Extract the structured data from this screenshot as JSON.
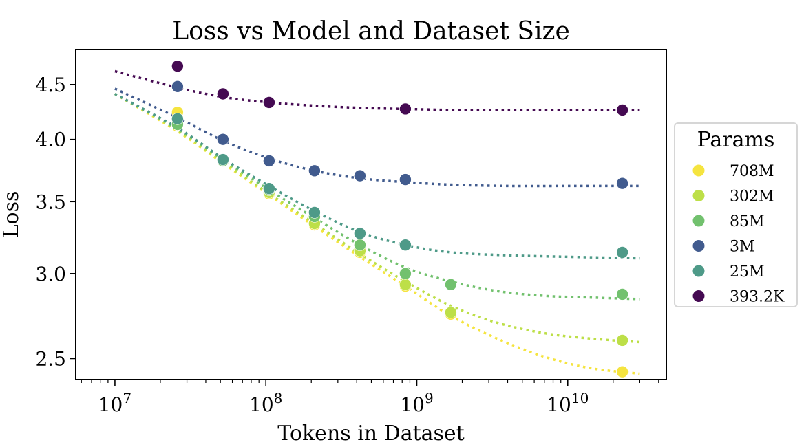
{
  "chart_data": {
    "type": "scatter",
    "title": "Loss vs Model and Dataset Size",
    "xlabel": "Tokens in Dataset",
    "ylabel": "Loss",
    "xscale": "log",
    "yscale": "log",
    "xlim": [
      5500000.0,
      45000000000.0
    ],
    "ylim": [
      2.39,
      4.85
    ],
    "x_ticks": [
      {
        "value": 10000000.0,
        "base": "10",
        "exp": "7"
      },
      {
        "value": 100000000.0,
        "base": "10",
        "exp": "8"
      },
      {
        "value": 1000000000.0,
        "base": "10",
        "exp": "9"
      },
      {
        "value": 10000000000.0,
        "base": "10",
        "exp": "10"
      }
    ],
    "y_ticks": [
      {
        "value": 2.5,
        "label": "2.5"
      },
      {
        "value": 3.0,
        "label": "3.0"
      },
      {
        "value": 3.5,
        "label": "3.5"
      },
      {
        "value": 4.0,
        "label": "4.0"
      },
      {
        "value": 4.5,
        "label": "4.5"
      }
    ],
    "grid": false,
    "legend": {
      "title": "Params",
      "position": "right-outside"
    },
    "fit_x_range": [
      10000000.0,
      30000000000.0
    ],
    "series": [
      {
        "name": "708M",
        "color": "#f5e43f",
        "x": [
          26000000.0,
          52000000.0,
          105000000.0,
          210000000.0,
          420000000.0,
          840000000.0,
          1680000000.0,
          23000000000.0
        ],
        "y": [
          4.24,
          3.82,
          3.56,
          3.33,
          3.14,
          2.92,
          2.75,
          2.43
        ],
        "fit": [
          [
            10000000.0,
            4.41
          ],
          [
            26000000.0,
            4.07
          ],
          [
            52000000.0,
            3.8
          ],
          [
            105000000.0,
            3.55
          ],
          [
            210000000.0,
            3.32
          ],
          [
            420000000.0,
            3.11
          ],
          [
            840000000.0,
            2.92
          ],
          [
            1680000000.0,
            2.74
          ],
          [
            3400000000.0,
            2.61
          ],
          [
            7000000000.0,
            2.51
          ],
          [
            14000000000.0,
            2.45
          ],
          [
            30000000000.0,
            2.42
          ]
        ]
      },
      {
        "name": "302M",
        "color": "#bddf48",
        "x": [
          26000000.0,
          52000000.0,
          105000000.0,
          210000000.0,
          420000000.0,
          840000000.0,
          1680000000.0,
          23000000000.0
        ],
        "y": [
          4.13,
          3.82,
          3.57,
          3.34,
          3.15,
          2.93,
          2.76,
          2.6
        ],
        "fit": [
          [
            10000000.0,
            4.41
          ],
          [
            26000000.0,
            4.08
          ],
          [
            52000000.0,
            3.81
          ],
          [
            105000000.0,
            3.56
          ],
          [
            210000000.0,
            3.34
          ],
          [
            420000000.0,
            3.13
          ],
          [
            840000000.0,
            2.95
          ],
          [
            1680000000.0,
            2.8
          ],
          [
            3400000000.0,
            2.7
          ],
          [
            7000000000.0,
            2.64
          ],
          [
            14000000000.0,
            2.61
          ],
          [
            30000000000.0,
            2.59
          ]
        ]
      },
      {
        "name": "85M",
        "color": "#72c16e",
        "x": [
          26000000.0,
          52000000.0,
          105000000.0,
          210000000.0,
          420000000.0,
          840000000.0,
          1680000000.0,
          23000000000.0
        ],
        "y": [
          4.13,
          3.82,
          3.59,
          3.39,
          3.19,
          3.0,
          2.93,
          2.87
        ],
        "fit": [
          [
            10000000.0,
            4.41
          ],
          [
            26000000.0,
            4.09
          ],
          [
            52000000.0,
            3.83
          ],
          [
            105000000.0,
            3.59
          ],
          [
            210000000.0,
            3.38
          ],
          [
            420000000.0,
            3.19
          ],
          [
            840000000.0,
            3.04
          ],
          [
            1680000000.0,
            2.95
          ],
          [
            3400000000.0,
            2.89
          ],
          [
            7000000000.0,
            2.86
          ],
          [
            14000000000.0,
            2.85
          ],
          [
            30000000000.0,
            2.84
          ]
        ]
      },
      {
        "name": "3M",
        "color": "#415b8e",
        "x": [
          26000000.0,
          52000000.0,
          105000000.0,
          210000000.0,
          420000000.0,
          840000000.0,
          23000000000.0
        ],
        "y": [
          4.48,
          4.0,
          3.82,
          3.74,
          3.7,
          3.67,
          3.64
        ],
        "fit": [
          [
            10000000.0,
            4.46
          ],
          [
            26000000.0,
            4.19
          ],
          [
            52000000.0,
            3.99
          ],
          [
            105000000.0,
            3.84
          ],
          [
            210000000.0,
            3.74
          ],
          [
            420000000.0,
            3.68
          ],
          [
            840000000.0,
            3.65
          ],
          [
            1680000000.0,
            3.63
          ],
          [
            4000000000.0,
            3.62
          ],
          [
            10000000000.0,
            3.62
          ],
          [
            30000000000.0,
            3.62
          ]
        ]
      },
      {
        "name": "25M",
        "color": "#4e9a88",
        "x": [
          26000000.0,
          52000000.0,
          105000000.0,
          210000000.0,
          420000000.0,
          840000000.0,
          23000000000.0
        ],
        "y": [
          4.18,
          3.83,
          3.6,
          3.42,
          3.27,
          3.19,
          3.14
        ],
        "fit": [
          [
            10000000.0,
            4.41
          ],
          [
            26000000.0,
            4.1
          ],
          [
            52000000.0,
            3.84
          ],
          [
            105000000.0,
            3.62
          ],
          [
            210000000.0,
            3.43
          ],
          [
            420000000.0,
            3.28
          ],
          [
            840000000.0,
            3.19
          ],
          [
            1680000000.0,
            3.14
          ],
          [
            4000000000.0,
            3.12
          ],
          [
            10000000000.0,
            3.11
          ],
          [
            30000000000.0,
            3.1
          ]
        ]
      },
      {
        "name": "393.2K",
        "color": "#450a52",
        "x": [
          26000000.0,
          52000000.0,
          105000000.0,
          840000000.0,
          23000000000.0
        ],
        "y": [
          4.68,
          4.41,
          4.33,
          4.27,
          4.26
        ],
        "fit": [
          [
            10000000.0,
            4.63
          ],
          [
            26000000.0,
            4.47
          ],
          [
            52000000.0,
            4.38
          ],
          [
            105000000.0,
            4.33
          ],
          [
            210000000.0,
            4.3
          ],
          [
            420000000.0,
            4.28
          ],
          [
            840000000.0,
            4.27
          ],
          [
            2000000000.0,
            4.26
          ],
          [
            10000000000.0,
            4.26
          ],
          [
            30000000000.0,
            4.26
          ]
        ]
      }
    ]
  }
}
